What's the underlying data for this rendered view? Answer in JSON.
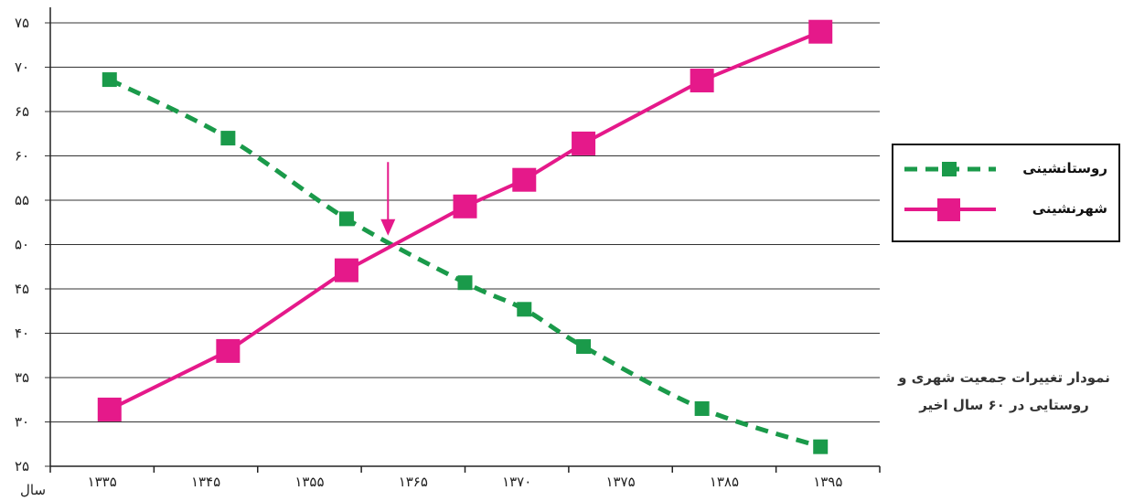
{
  "chart_data": {
    "type": "line",
    "title": "",
    "xlabel": "سال",
    "ylabel": "",
    "categories": [
      "۱۳۳۵",
      "۱۳۴۵",
      "۱۳۵۵",
      "۱۳۶۵",
      "۱۳۷۰",
      "۱۳۷۵",
      "۱۳۸۵",
      "۱۳۹۵"
    ],
    "x": [
      1335,
      1345,
      1355,
      1365,
      1370,
      1375,
      1385,
      1395
    ],
    "xlim": [
      1330,
      1400
    ],
    "ylim": [
      25,
      75
    ],
    "y_ticks": [
      25,
      30,
      35,
      40,
      45,
      50,
      55,
      60,
      65,
      70,
      75
    ],
    "y_tick_labels": [
      "۲۵",
      "۳۰",
      "۳۵",
      "۴۰",
      "۴۵",
      "۵۰",
      "۵۵",
      "۶۰",
      "۶۵",
      "۷۰",
      "۷۵"
    ],
    "grid": true,
    "legend_position": "right",
    "series": [
      {
        "name": "روستانشینی",
        "x": [
          1335,
          1345,
          1355,
          1365,
          1370,
          1375,
          1385,
          1395
        ],
        "values": [
          68.6,
          62.0,
          52.9,
          45.7,
          42.7,
          38.5,
          31.5,
          27.2
        ],
        "color": "#1a9a4a",
        "line_style": "dashed",
        "marker": "square"
      },
      {
        "name": "شهرنشینی",
        "x": [
          1335,
          1345,
          1355,
          1365,
          1370,
          1375,
          1385,
          1395
        ],
        "values": [
          31.4,
          38.0,
          47.1,
          54.3,
          57.3,
          61.4,
          68.5,
          74.0
        ],
        "color": "#e5198a",
        "line_style": "solid",
        "marker": "square"
      }
    ],
    "annotations": [
      {
        "type": "arrow",
        "x": 1358.5,
        "y_from": 59.3,
        "y_to": 51.0,
        "color": "#e5198a"
      }
    ],
    "caption_lines": [
      "نمودار تغییرات جمعیت شهری و",
      "روستایی در ۶۰ سال اخیر"
    ]
  }
}
